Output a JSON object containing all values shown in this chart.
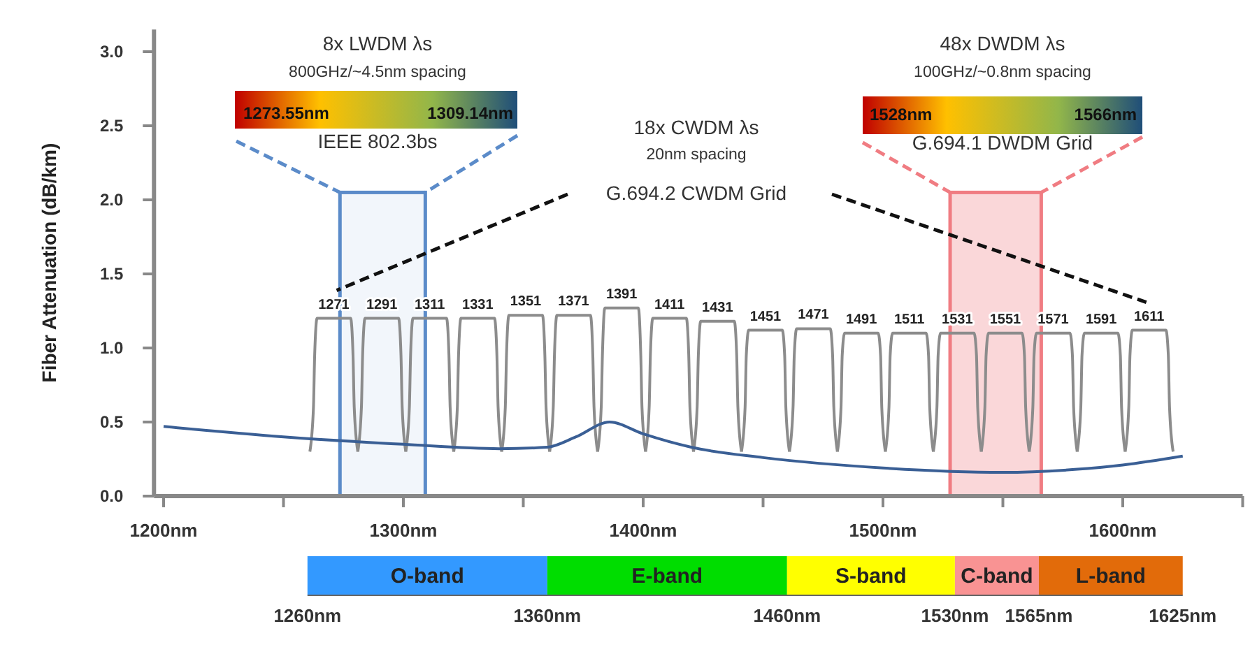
{
  "chart_data": [
    {
      "type": "line",
      "ylabel": "Fiber Attenuation (dB/km)",
      "xlim": [
        1196,
        1650
      ],
      "ylim": [
        0,
        3.15
      ],
      "xticks": [
        {
          "value": 1200,
          "label": "1200nm"
        },
        {
          "value": 1250,
          "label": null
        },
        {
          "value": 1300,
          "label": "1300nm"
        },
        {
          "value": 1350,
          "label": null
        },
        {
          "value": 1400,
          "label": "1400nm"
        },
        {
          "value": 1450,
          "label": null
        },
        {
          "value": 1500,
          "label": "1500nm"
        },
        {
          "value": 1550,
          "label": null
        },
        {
          "value": 1600,
          "label": "1600nm"
        },
        {
          "value": 1650,
          "label": null
        }
      ],
      "yticks": [
        {
          "value": 0,
          "label": "0.0"
        },
        {
          "value": 0.5,
          "label": "0.5"
        },
        {
          "value": 1,
          "label": "1.0"
        },
        {
          "value": 1.5,
          "label": "1.5"
        },
        {
          "value": 2,
          "label": "2.0"
        },
        {
          "value": 2.5,
          "label": "2.5"
        },
        {
          "value": 3,
          "label": "3.0"
        }
      ],
      "series": [
        {
          "color": "#8c8c8c",
          "x": [
            1261,
            1262.5,
            1263,
            1264,
            1271,
            1278,
            1279,
            1279.5,
            1281
          ],
          "values": [
            0.3,
            0.6,
            0.95,
            1.2,
            1.2,
            1.2,
            0.95,
            0.6,
            0.3
          ]
        },
        {
          "color": "#8c8c8c",
          "x": [
            1281,
            1282.5,
            1283,
            1284,
            1291,
            1298,
            1299,
            1299.5,
            1301
          ],
          "values": [
            0.3,
            0.6,
            0.95,
            1.2,
            1.2,
            1.2,
            0.95,
            0.6,
            0.3
          ]
        },
        {
          "color": "#8c8c8c",
          "x": [
            1301,
            1302.5,
            1303,
            1304,
            1311,
            1318,
            1319,
            1319.5,
            1321
          ],
          "values": [
            0.3,
            0.6,
            0.95,
            1.2,
            1.2,
            1.2,
            0.95,
            0.6,
            0.3
          ]
        },
        {
          "color": "#8c8c8c",
          "x": [
            1321,
            1322.5,
            1323,
            1324,
            1331,
            1338,
            1339,
            1339.5,
            1341
          ],
          "values": [
            0.3,
            0.6,
            0.95,
            1.2,
            1.2,
            1.2,
            0.95,
            0.6,
            0.3
          ]
        },
        {
          "color": "#8c8c8c",
          "x": [
            1341,
            1342.5,
            1343,
            1344,
            1351,
            1358,
            1359,
            1359.5,
            1361
          ],
          "values": [
            0.3,
            0.6,
            0.95,
            1.22,
            1.22,
            1.22,
            0.95,
            0.6,
            0.3
          ]
        },
        {
          "color": "#8c8c8c",
          "x": [
            1361,
            1362.5,
            1363,
            1364,
            1371,
            1378,
            1379,
            1379.5,
            1381
          ],
          "values": [
            0.3,
            0.6,
            0.95,
            1.22,
            1.22,
            1.22,
            0.95,
            0.6,
            0.3
          ]
        },
        {
          "color": "#8c8c8c",
          "x": [
            1381,
            1382.5,
            1383,
            1384,
            1391,
            1398,
            1399,
            1399.5,
            1401
          ],
          "values": [
            0.3,
            0.6,
            0.95,
            1.27,
            1.27,
            1.27,
            0.95,
            0.6,
            0.3
          ]
        },
        {
          "color": "#8c8c8c",
          "x": [
            1401,
            1402.5,
            1403,
            1404,
            1411,
            1418,
            1419,
            1419.5,
            1421
          ],
          "values": [
            0.3,
            0.6,
            0.95,
            1.2,
            1.2,
            1.2,
            0.95,
            0.6,
            0.3
          ]
        },
        {
          "color": "#8c8c8c",
          "x": [
            1421,
            1422.5,
            1423,
            1424,
            1431,
            1438,
            1439,
            1439.5,
            1441
          ],
          "values": [
            0.3,
            0.6,
            0.95,
            1.18,
            1.18,
            1.18,
            0.95,
            0.6,
            0.3
          ]
        },
        {
          "color": "#8c8c8c",
          "x": [
            1441,
            1442.5,
            1443,
            1444,
            1451,
            1458,
            1459,
            1459.5,
            1461
          ],
          "values": [
            0.3,
            0.6,
            0.95,
            1.12,
            1.12,
            1.12,
            0.95,
            0.6,
            0.3
          ]
        },
        {
          "color": "#8c8c8c",
          "x": [
            1461,
            1462.5,
            1463,
            1464,
            1471,
            1478,
            1479,
            1479.5,
            1481
          ],
          "values": [
            0.3,
            0.6,
            0.95,
            1.13,
            1.13,
            1.13,
            0.95,
            0.6,
            0.3
          ]
        },
        {
          "color": "#8c8c8c",
          "x": [
            1481,
            1482.5,
            1483,
            1484,
            1491,
            1498,
            1499,
            1499.5,
            1501
          ],
          "values": [
            0.3,
            0.6,
            0.95,
            1.1,
            1.1,
            1.1,
            0.95,
            0.6,
            0.3
          ]
        },
        {
          "color": "#8c8c8c",
          "x": [
            1501,
            1502.5,
            1503,
            1504,
            1511,
            1518,
            1519,
            1519.5,
            1521
          ],
          "values": [
            0.3,
            0.6,
            0.95,
            1.1,
            1.1,
            1.1,
            0.95,
            0.6,
            0.3
          ]
        },
        {
          "color": "#8c8c8c",
          "x": [
            1521,
            1522.5,
            1523,
            1524,
            1531,
            1538,
            1539,
            1539.5,
            1541
          ],
          "values": [
            0.3,
            0.6,
            0.95,
            1.1,
            1.1,
            1.1,
            0.95,
            0.6,
            0.3
          ]
        },
        {
          "color": "#8c8c8c",
          "x": [
            1541,
            1542.5,
            1543,
            1544,
            1551,
            1558,
            1559,
            1559.5,
            1561
          ],
          "values": [
            0.3,
            0.6,
            0.95,
            1.1,
            1.1,
            1.1,
            0.95,
            0.6,
            0.3
          ]
        },
        {
          "color": "#8c8c8c",
          "x": [
            1561,
            1562.5,
            1563,
            1564,
            1571,
            1578,
            1579,
            1579.5,
            1581
          ],
          "values": [
            0.3,
            0.6,
            0.95,
            1.1,
            1.1,
            1.1,
            0.95,
            0.6,
            0.3
          ]
        },
        {
          "color": "#8c8c8c",
          "x": [
            1581,
            1582.5,
            1583,
            1584,
            1591,
            1598,
            1599,
            1599.5,
            1601
          ],
          "values": [
            0.3,
            0.6,
            0.95,
            1.1,
            1.1,
            1.1,
            0.95,
            0.6,
            0.3
          ]
        },
        {
          "color": "#8c8c8c",
          "x": [
            1601,
            1602.5,
            1603,
            1604,
            1611,
            1618,
            1619,
            1619.5,
            1621
          ],
          "values": [
            0.3,
            0.6,
            0.95,
            1.12,
            1.12,
            1.12,
            0.95,
            0.6,
            0.3
          ]
        },
        {
          "color": "#3a5f95",
          "x": [
            1200,
            1250,
            1300,
            1340,
            1360,
            1372,
            1386,
            1400,
            1420,
            1450,
            1500,
            1550,
            1580,
            1600,
            1625
          ],
          "values": [
            0.47,
            0.4,
            0.35,
            0.32,
            0.33,
            0.4,
            0.5,
            0.42,
            0.33,
            0.26,
            0.19,
            0.16,
            0.18,
            0.21,
            0.27
          ]
        }
      ],
      "bands": [
        {
          "axis": "x",
          "from": 1273.55,
          "to": 1309.14,
          "color": "#5b8bc9"
        },
        {
          "axis": "x",
          "from": 1528,
          "to": 1566,
          "color": "#f07c82"
        }
      ],
      "annotations": [
        {
          "text": "1271",
          "x": 1271,
          "y": 1.2
        },
        {
          "text": "1291",
          "x": 1291,
          "y": 1.2
        },
        {
          "text": "1311",
          "x": 1311,
          "y": 1.2
        },
        {
          "text": "1331",
          "x": 1331,
          "y": 1.2
        },
        {
          "text": "1351",
          "x": 1351,
          "y": 1.22
        },
        {
          "text": "1371",
          "x": 1371,
          "y": 1.22
        },
        {
          "text": "1391",
          "x": 1391,
          "y": 1.27
        },
        {
          "text": "1411",
          "x": 1411,
          "y": 1.2
        },
        {
          "text": "1431",
          "x": 1431,
          "y": 1.18
        },
        {
          "text": "1451",
          "x": 1451,
          "y": 1.12
        },
        {
          "text": "1471",
          "x": 1471,
          "y": 1.13
        },
        {
          "text": "1491",
          "x": 1491,
          "y": 1.1
        },
        {
          "text": "1511",
          "x": 1511,
          "y": 1.1
        },
        {
          "text": "1531",
          "x": 1531,
          "y": 1.1
        },
        {
          "text": "1551",
          "x": 1551,
          "y": 1.1
        },
        {
          "text": "1571",
          "x": 1571,
          "y": 1.1
        },
        {
          "text": "1591",
          "x": 1591,
          "y": 1.1
        },
        {
          "text": "1611",
          "x": 1611,
          "y": 1.12
        },
        "8x LWDM λs",
        "800GHz/~4.5nm spacing",
        {
          "text": "1273.55nm",
          "x": 1273.55,
          "y": 2.05
        },
        {
          "text": "1309.14nm",
          "x": 1309.14,
          "y": 2.05
        },
        "IEEE 802.3bs",
        "18x CWDM λs",
        "20nm spacing",
        "G.694.2 CWDM Grid",
        "48x DWDM λs",
        "100GHz/~0.8nm spacing",
        {
          "text": "1528nm",
          "x": 1528,
          "y": 2.05
        },
        {
          "text": "1566nm",
          "x": 1566,
          "y": 2.05
        },
        "G.694.1 DWDM Grid"
      ]
    },
    {
      "type": "bar",
      "orientation": "horizontal",
      "tick_labels": "x",
      "categories": [
        null
      ],
      "xlim": [
        1260,
        1625
      ],
      "xticks": [
        {
          "value": 1260,
          "label": "1260nm"
        },
        {
          "value": 1360,
          "label": "1360nm"
        },
        {
          "value": 1460,
          "label": "1460nm"
        },
        {
          "value": 1530,
          "label": "1530nm"
        },
        {
          "value": 1565,
          "label": "1565nm"
        },
        {
          "value": 1625,
          "label": "1625nm"
        }
      ],
      "series": [
        {
          "name": "O-band",
          "color": "#3399ff",
          "base": [
            1260
          ],
          "values": [
            100
          ]
        },
        {
          "name": "E-band",
          "color": "#00dd00",
          "base": [
            1360
          ],
          "values": [
            100
          ]
        },
        {
          "name": "S-band",
          "color": "#ffff00",
          "base": [
            1460
          ],
          "values": [
            70
          ]
        },
        {
          "name": "C-band",
          "color": "#f99393",
          "base": [
            1530
          ],
          "values": [
            35
          ]
        },
        {
          "name": "L-band",
          "color": "#e26b0a",
          "base": [
            1565
          ],
          "values": [
            60
          ]
        }
      ]
    }
  ]
}
